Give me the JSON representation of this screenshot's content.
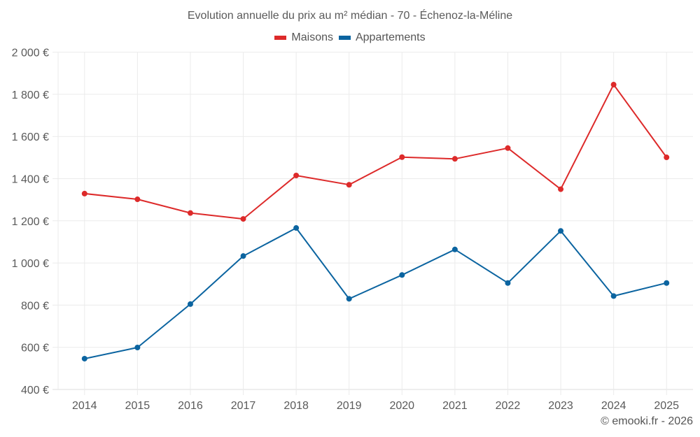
{
  "colors": {
    "maisons": "#dd2a2a",
    "appartements": "#0b64a0",
    "grid": "#ebebeb",
    "axis": "#dcdcdc",
    "text": "#5a5a5a"
  },
  "credit": "© emooki.fr - 2026",
  "chart_data": {
    "type": "line",
    "title": "Evolution annuelle du prix au m² médian - 70 - Échenoz-la-Méline",
    "xlabel": "",
    "ylabel": "",
    "categories": [
      "2014",
      "2015",
      "2016",
      "2017",
      "2018",
      "2019",
      "2020",
      "2021",
      "2022",
      "2023",
      "2024",
      "2025"
    ],
    "ylim": [
      400,
      2000
    ],
    "yticks": [
      400,
      600,
      800,
      1000,
      1200,
      1400,
      1600,
      1800,
      2000
    ],
    "ytick_labels": [
      "400 €",
      "600 €",
      "800 €",
      "1 000 €",
      "1 200 €",
      "1 400 €",
      "1 600 €",
      "1 800 €",
      "2 000 €"
    ],
    "grid": true,
    "legend_position": "top-center",
    "series": [
      {
        "name": "Maisons",
        "color": "#dd2a2a",
        "values": [
          1329,
          1302,
          1237,
          1209,
          1415,
          1371,
          1502,
          1494,
          1545,
          1350,
          1846,
          1501
        ]
      },
      {
        "name": "Appartements",
        "color": "#0b64a0",
        "values": [
          546,
          599,
          805,
          1033,
          1166,
          830,
          943,
          1064,
          905,
          1152,
          843,
          905
        ]
      }
    ]
  }
}
